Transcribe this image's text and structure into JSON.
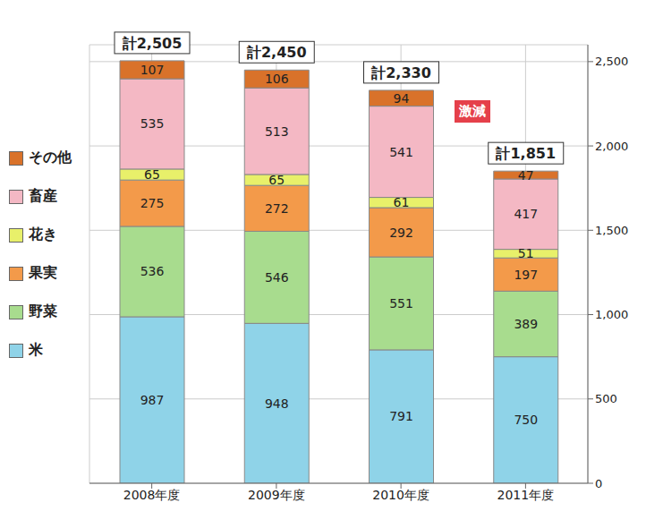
{
  "chart_data": {
    "type": "bar",
    "stacked": true,
    "data_labels": true,
    "grid": true,
    "legend": "left",
    "categories": [
      "2008年度",
      "2009年度",
      "2010年度",
      "2011年度"
    ],
    "series": [
      {
        "name": "米",
        "color": "#8fd3e8",
        "values": [
          987,
          948,
          791,
          750
        ]
      },
      {
        "name": "野菜",
        "color": "#a8dc8e",
        "values": [
          536,
          546,
          551,
          389
        ]
      },
      {
        "name": "果実",
        "color": "#f39a4a",
        "values": [
          275,
          272,
          292,
          197
        ]
      },
      {
        "name": "花き",
        "color": "#e8f06a",
        "values": [
          65,
          65,
          61,
          51
        ]
      },
      {
        "name": "畜産",
        "color": "#f4b8c4",
        "values": [
          535,
          513,
          541,
          417
        ]
      },
      {
        "name": "その他",
        "color": "#d9722a",
        "values": [
          107,
          106,
          94,
          47
        ]
      }
    ],
    "totals": [
      2505,
      2450,
      2330,
      1851
    ],
    "total_labels": [
      "計2,505",
      "計2,450",
      "計2,330",
      "計1,851"
    ],
    "annotations": [
      "激減"
    ],
    "ylim": [
      0,
      2600
    ],
    "yticks": [
      0,
      500,
      {
        "value": 1000,
        "label": "1,000"
      },
      {
        "value": 1500,
        "label": "1,500"
      },
      {
        "value": 2000,
        "label": "2,000"
      },
      {
        "value": 2500,
        "label": "2,500"
      }
    ]
  }
}
